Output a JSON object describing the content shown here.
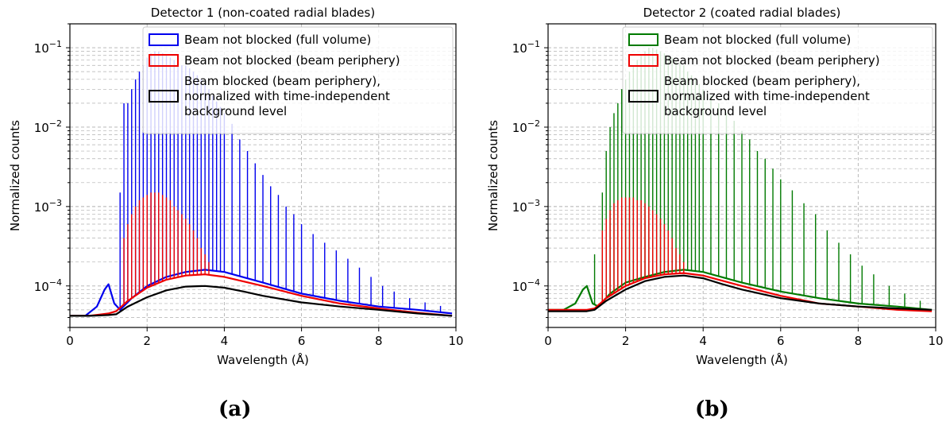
{
  "chart_data": [
    {
      "type": "line",
      "title": "Detector 1 (non-coated radial blades)",
      "xlabel": "Wavelength (Å)",
      "ylabel": "Normalized counts",
      "xlim": [
        0,
        10
      ],
      "ylim": [
        3e-05,
        0.2
      ],
      "yscale": "log",
      "grid": true,
      "legend_position": "top-right",
      "x_ticks": [
        "0",
        "2",
        "4",
        "6",
        "8",
        "10"
      ],
      "y_ticks": [
        {
          "base": "10",
          "exp": "−4",
          "value": 0.0001
        },
        {
          "base": "10",
          "exp": "−3",
          "value": 0.001
        },
        {
          "base": "10",
          "exp": "−2",
          "value": 0.01
        },
        {
          "base": "10",
          "exp": "−1",
          "value": 0.1
        }
      ],
      "caption": "(a)",
      "series": [
        {
          "name": "Beam not blocked (full volume)",
          "color": "#0000ee",
          "x": [
            0,
            0.4,
            0.7,
            0.9,
            1.0,
            1.15,
            1.3,
            1.6,
            2.0,
            2.5,
            3.0,
            3.5,
            4.0,
            5.0,
            6.0,
            7.0,
            8.0,
            9.0,
            9.9
          ],
          "y": [
            4.2e-05,
            4.2e-05,
            5.5e-05,
            9e-05,
            0.000105,
            6e-05,
            5e-05,
            7e-05,
            0.0001,
            0.00013,
            0.00015,
            0.00016,
            0.00015,
            0.00011,
            8e-05,
            6.5e-05,
            5.5e-05,
            5e-05,
            4.5e-05
          ],
          "peaks": [
            {
              "x": 1.3,
              "y": 0.0015
            },
            {
              "x": 1.4,
              "y": 0.02
            },
            {
              "x": 1.5,
              "y": 0.02
            },
            {
              "x": 1.6,
              "y": 0.03
            },
            {
              "x": 1.7,
              "y": 0.04
            },
            {
              "x": 1.8,
              "y": 0.05
            },
            {
              "x": 1.9,
              "y": 0.06
            },
            {
              "x": 2.0,
              "y": 0.075
            },
            {
              "x": 2.1,
              "y": 0.085
            },
            {
              "x": 2.2,
              "y": 0.09
            },
            {
              "x": 2.3,
              "y": 0.09
            },
            {
              "x": 2.4,
              "y": 0.085
            },
            {
              "x": 2.5,
              "y": 0.08
            },
            {
              "x": 2.6,
              "y": 0.075
            },
            {
              "x": 2.7,
              "y": 0.07
            },
            {
              "x": 2.8,
              "y": 0.065
            },
            {
              "x": 2.9,
              "y": 0.06
            },
            {
              "x": 3.0,
              "y": 0.06
            },
            {
              "x": 3.1,
              "y": 0.055
            },
            {
              "x": 3.2,
              "y": 0.05
            },
            {
              "x": 3.3,
              "y": 0.045
            },
            {
              "x": 3.4,
              "y": 0.04
            },
            {
              "x": 3.5,
              "y": 0.035
            },
            {
              "x": 3.6,
              "y": 0.03
            },
            {
              "x": 3.7,
              "y": 0.025
            },
            {
              "x": 3.8,
              "y": 0.021
            },
            {
              "x": 3.9,
              "y": 0.018
            },
            {
              "x": 4.0,
              "y": 0.015
            },
            {
              "x": 4.2,
              "y": 0.011
            },
            {
              "x": 4.4,
              "y": 0.007
            },
            {
              "x": 4.6,
              "y": 0.005
            },
            {
              "x": 4.8,
              "y": 0.0035
            },
            {
              "x": 5.0,
              "y": 0.0025
            },
            {
              "x": 5.2,
              "y": 0.0018
            },
            {
              "x": 5.4,
              "y": 0.0014
            },
            {
              "x": 5.6,
              "y": 0.001
            },
            {
              "x": 5.8,
              "y": 0.0008
            },
            {
              "x": 6.0,
              "y": 0.0006
            },
            {
              "x": 6.3,
              "y": 0.00045
            },
            {
              "x": 6.6,
              "y": 0.00035
            },
            {
              "x": 6.9,
              "y": 0.00028
            },
            {
              "x": 7.2,
              "y": 0.00022
            },
            {
              "x": 7.5,
              "y": 0.00017
            },
            {
              "x": 7.8,
              "y": 0.00013
            },
            {
              "x": 8.1,
              "y": 0.0001
            },
            {
              "x": 8.4,
              "y": 8.5e-05
            },
            {
              "x": 8.8,
              "y": 7e-05
            },
            {
              "x": 9.2,
              "y": 6.2e-05
            },
            {
              "x": 9.6,
              "y": 5.6e-05
            }
          ]
        },
        {
          "name": "Beam not blocked (beam periphery)",
          "color": "#ee0000",
          "x": [
            0,
            0.5,
            1.0,
            1.2,
            1.5,
            2.0,
            2.5,
            3.0,
            3.5,
            4.0,
            5.0,
            6.0,
            7.0,
            8.0,
            9.0,
            9.9
          ],
          "y": [
            4.2e-05,
            4.2e-05,
            4.5e-05,
            4.8e-05,
            6.5e-05,
            9.5e-05,
            0.00012,
            0.000135,
            0.00014,
            0.00013,
            0.0001,
            7.5e-05,
            6e-05,
            5.2e-05,
            4.6e-05,
            4.2e-05
          ],
          "peaks": [
            {
              "x": 1.4,
              "y": 0.0004
            },
            {
              "x": 1.5,
              "y": 0.0006
            },
            {
              "x": 1.6,
              "y": 0.0008
            },
            {
              "x": 1.7,
              "y": 0.001
            },
            {
              "x": 1.8,
              "y": 0.0012
            },
            {
              "x": 1.9,
              "y": 0.0013
            },
            {
              "x": 2.0,
              "y": 0.0014
            },
            {
              "x": 2.1,
              "y": 0.0015
            },
            {
              "x": 2.2,
              "y": 0.0015
            },
            {
              "x": 2.3,
              "y": 0.0015
            },
            {
              "x": 2.4,
              "y": 0.0014
            },
            {
              "x": 2.5,
              "y": 0.0013
            },
            {
              "x": 2.6,
              "y": 0.0012
            },
            {
              "x": 2.7,
              "y": 0.001
            },
            {
              "x": 2.8,
              "y": 0.0009
            },
            {
              "x": 2.9,
              "y": 0.0008
            },
            {
              "x": 3.0,
              "y": 0.0007
            },
            {
              "x": 3.1,
              "y": 0.0006
            },
            {
              "x": 3.2,
              "y": 0.0005
            },
            {
              "x": 3.3,
              "y": 0.0004
            },
            {
              "x": 3.4,
              "y": 0.0003
            },
            {
              "x": 3.5,
              "y": 0.00025
            },
            {
              "x": 3.6,
              "y": 0.0002
            }
          ]
        },
        {
          "name": "Beam blocked (beam periphery), normalized with time-independent background level",
          "color": "#000000",
          "x": [
            0,
            0.5,
            1.0,
            1.2,
            1.5,
            2.0,
            2.5,
            3.0,
            3.5,
            4.0,
            4.5,
            5.0,
            6.0,
            7.0,
            8.0,
            9.0,
            9.9
          ],
          "y": [
            4.2e-05,
            4.2e-05,
            4.3e-05,
            4.4e-05,
            5.5e-05,
            7.2e-05,
            8.8e-05,
            9.8e-05,
            0.0001,
            9.5e-05,
            8.5e-05,
            7.5e-05,
            6.2e-05,
            5.5e-05,
            5e-05,
            4.5e-05,
            4.2e-05
          ]
        }
      ]
    },
    {
      "type": "line",
      "title": "Detector 2 (coated radial blades)",
      "xlabel": "Wavelength (Å)",
      "ylabel": "Normalized counts",
      "xlim": [
        0,
        10
      ],
      "ylim": [
        3e-05,
        0.2
      ],
      "yscale": "log",
      "grid": true,
      "legend_position": "top-right",
      "x_ticks": [
        "0",
        "2",
        "4",
        "6",
        "8",
        "10"
      ],
      "y_ticks": [
        {
          "base": "10",
          "exp": "−4",
          "value": 0.0001
        },
        {
          "base": "10",
          "exp": "−3",
          "value": 0.001
        },
        {
          "base": "10",
          "exp": "−2",
          "value": 0.01
        },
        {
          "base": "10",
          "exp": "−1",
          "value": 0.1
        }
      ],
      "caption": "(b)",
      "series": [
        {
          "name": "Beam not blocked (full volume)",
          "color": "#007a00",
          "x": [
            0,
            0.4,
            0.7,
            0.9,
            1.0,
            1.15,
            1.3,
            1.6,
            2.0,
            2.5,
            3.0,
            3.5,
            4.0,
            5.0,
            6.0,
            7.0,
            8.0,
            9.0,
            9.9
          ],
          "y": [
            5e-05,
            5e-05,
            6e-05,
            9e-05,
            0.0001,
            6e-05,
            5.5e-05,
            8e-05,
            0.00011,
            0.00013,
            0.00015,
            0.00016,
            0.00015,
            0.00011,
            8.5e-05,
            7e-05,
            6e-05,
            5.5e-05,
            5e-05
          ],
          "peaks": [
            {
              "x": 1.2,
              "y": 0.00025
            },
            {
              "x": 1.4,
              "y": 0.0015
            },
            {
              "x": 1.5,
              "y": 0.005
            },
            {
              "x": 1.6,
              "y": 0.01
            },
            {
              "x": 1.7,
              "y": 0.015
            },
            {
              "x": 1.8,
              "y": 0.02
            },
            {
              "x": 1.9,
              "y": 0.03
            },
            {
              "x": 2.0,
              "y": 0.04
            },
            {
              "x": 2.1,
              "y": 0.05
            },
            {
              "x": 2.2,
              "y": 0.06
            },
            {
              "x": 2.3,
              "y": 0.07
            },
            {
              "x": 2.4,
              "y": 0.08
            },
            {
              "x": 2.5,
              "y": 0.09
            },
            {
              "x": 2.6,
              "y": 0.1
            },
            {
              "x": 2.7,
              "y": 0.1
            },
            {
              "x": 2.8,
              "y": 0.095
            },
            {
              "x": 2.9,
              "y": 0.09
            },
            {
              "x": 3.0,
              "y": 0.085
            },
            {
              "x": 3.1,
              "y": 0.08
            },
            {
              "x": 3.2,
              "y": 0.075
            },
            {
              "x": 3.3,
              "y": 0.07
            },
            {
              "x": 3.4,
              "y": 0.065
            },
            {
              "x": 3.5,
              "y": 0.06
            },
            {
              "x": 3.6,
              "y": 0.05
            },
            {
              "x": 3.7,
              "y": 0.045
            },
            {
              "x": 3.8,
              "y": 0.04
            },
            {
              "x": 3.9,
              "y": 0.035
            },
            {
              "x": 4.0,
              "y": 0.03
            },
            {
              "x": 4.2,
              "y": 0.025
            },
            {
              "x": 4.4,
              "y": 0.02
            },
            {
              "x": 4.6,
              "y": 0.015
            },
            {
              "x": 4.8,
              "y": 0.012
            },
            {
              "x": 5.0,
              "y": 0.009
            },
            {
              "x": 5.2,
              "y": 0.007
            },
            {
              "x": 5.4,
              "y": 0.005
            },
            {
              "x": 5.6,
              "y": 0.004
            },
            {
              "x": 5.8,
              "y": 0.003
            },
            {
              "x": 6.0,
              "y": 0.0022
            },
            {
              "x": 6.3,
              "y": 0.0016
            },
            {
              "x": 6.6,
              "y": 0.0011
            },
            {
              "x": 6.9,
              "y": 0.0008
            },
            {
              "x": 7.2,
              "y": 0.0005
            },
            {
              "x": 7.5,
              "y": 0.00035
            },
            {
              "x": 7.8,
              "y": 0.00025
            },
            {
              "x": 8.1,
              "y": 0.00018
            },
            {
              "x": 8.4,
              "y": 0.00014
            },
            {
              "x": 8.8,
              "y": 0.0001
            },
            {
              "x": 9.2,
              "y": 8e-05
            },
            {
              "x": 9.6,
              "y": 6.5e-05
            }
          ]
        },
        {
          "name": "Beam not blocked (beam periphery)",
          "color": "#ee0000",
          "x": [
            0,
            0.5,
            1.0,
            1.2,
            1.5,
            2.0,
            2.5,
            3.0,
            3.5,
            4.0,
            5.0,
            6.0,
            7.0,
            8.0,
            9.0,
            9.9
          ],
          "y": [
            5e-05,
            5e-05,
            5e-05,
            5.2e-05,
            7e-05,
            0.0001,
            0.000125,
            0.00014,
            0.000145,
            0.000135,
            0.0001,
            7.5e-05,
            6e-05,
            5.5e-05,
            5e-05,
            4.8e-05
          ],
          "peaks": [
            {
              "x": 1.4,
              "y": 0.0005
            },
            {
              "x": 1.5,
              "y": 0.0007
            },
            {
              "x": 1.6,
              "y": 0.0009
            },
            {
              "x": 1.7,
              "y": 0.0011
            },
            {
              "x": 1.8,
              "y": 0.0012
            },
            {
              "x": 1.9,
              "y": 0.0013
            },
            {
              "x": 2.0,
              "y": 0.0013
            },
            {
              "x": 2.1,
              "y": 0.0013
            },
            {
              "x": 2.2,
              "y": 0.0013
            },
            {
              "x": 2.3,
              "y": 0.0012
            },
            {
              "x": 2.4,
              "y": 0.0012
            },
            {
              "x": 2.5,
              "y": 0.0011
            },
            {
              "x": 2.6,
              "y": 0.001
            },
            {
              "x": 2.7,
              "y": 0.0009
            },
            {
              "x": 2.8,
              "y": 0.0008
            },
            {
              "x": 2.9,
              "y": 0.0007
            },
            {
              "x": 3.0,
              "y": 0.0006
            },
            {
              "x": 3.1,
              "y": 0.0005
            },
            {
              "x": 3.2,
              "y": 0.0004
            },
            {
              "x": 3.3,
              "y": 0.0003
            },
            {
              "x": 3.4,
              "y": 0.00025
            },
            {
              "x": 3.5,
              "y": 0.0002
            }
          ]
        },
        {
          "name": "Beam blocked (beam periphery), normalized with time-independent background level",
          "color": "#000000",
          "x": [
            0,
            0.5,
            1.0,
            1.2,
            1.5,
            2.0,
            2.5,
            3.0,
            3.5,
            4.0,
            4.5,
            5.0,
            6.0,
            7.0,
            8.0,
            9.0,
            9.9
          ],
          "y": [
            4.8e-05,
            4.8e-05,
            4.8e-05,
            5e-05,
            6.5e-05,
            9e-05,
            0.000115,
            0.00013,
            0.000135,
            0.000125,
            0.000105,
            9e-05,
            7e-05,
            6e-05,
            5.5e-05,
            5.2e-05,
            5e-05
          ]
        }
      ]
    }
  ]
}
